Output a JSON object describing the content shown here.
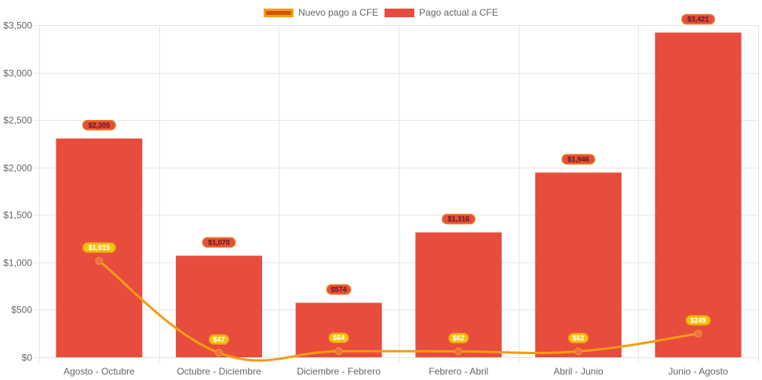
{
  "chart_data": {
    "type": "bar",
    "categories": [
      "Agosto - Octubre",
      "Octubre - Diciembre",
      "Diciembre - Febrero",
      "Febrero - Abril",
      "Abril - Junio",
      "Junio - Agosto"
    ],
    "series": [
      {
        "name": "Nuevo pago a CFE",
        "type": "line",
        "values": [
          1015,
          47,
          64,
          62,
          62,
          249
        ],
        "labels": [
          "$1,015",
          "$47",
          "$64",
          "$62",
          "$62",
          "$249"
        ],
        "color": "#f39c12",
        "fill": "#d35400"
      },
      {
        "name": "Pago actual a CFE",
        "type": "bar",
        "values": [
          2305,
          1070,
          574,
          1316,
          1946,
          3421
        ],
        "labels": [
          "$2,305",
          "$1,070",
          "$574",
          "$1,316",
          "$1,946",
          "$3,421"
        ],
        "color": "#e74c3c"
      }
    ],
    "ylim": [
      0,
      3500
    ],
    "yticks": [
      0,
      500,
      1000,
      1500,
      2000,
      2500,
      3000,
      3500
    ],
    "ytick_labels": [
      "$0",
      "$500",
      "$1,000",
      "$1,500",
      "$2,000",
      "$2,500",
      "$3,000",
      "$3,500"
    ],
    "grid": true,
    "legend": "top-center"
  }
}
